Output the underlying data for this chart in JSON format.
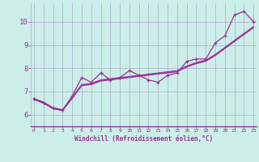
{
  "xlabel": "Windchill (Refroidissement éolien,°C)",
  "background_color": "#cceee8",
  "line_color": "#993399",
  "grid_color": "#aaaacc",
  "x_ticks": [
    0,
    1,
    2,
    3,
    4,
    5,
    6,
    7,
    8,
    9,
    10,
    11,
    12,
    13,
    14,
    15,
    16,
    17,
    18,
    19,
    20,
    21,
    22,
    23
  ],
  "y_ticks": [
    6,
    7,
    8,
    9,
    10
  ],
  "xlim": [
    -0.3,
    23.3
  ],
  "ylim": [
    5.5,
    10.8
  ],
  "marker_series": [
    6.7,
    6.5,
    6.3,
    6.2,
    6.8,
    7.6,
    7.4,
    7.8,
    7.5,
    7.6,
    7.9,
    7.7,
    7.5,
    7.4,
    7.7,
    7.8,
    8.3,
    8.4,
    8.4,
    9.1,
    9.4,
    10.3,
    10.45,
    10.0
  ],
  "smooth_lines": [
    [
      6.7,
      6.55,
      6.3,
      6.22,
      6.75,
      7.3,
      7.35,
      7.5,
      7.55,
      7.6,
      7.65,
      7.7,
      7.75,
      7.8,
      7.85,
      7.9,
      8.1,
      8.25,
      8.35,
      8.6,
      8.9,
      9.2,
      9.5,
      9.8
    ],
    [
      6.68,
      6.52,
      6.28,
      6.2,
      6.72,
      7.28,
      7.32,
      7.48,
      7.52,
      7.58,
      7.62,
      7.68,
      7.72,
      7.78,
      7.82,
      7.88,
      8.08,
      8.22,
      8.32,
      8.58,
      8.88,
      9.18,
      9.48,
      9.78
    ],
    [
      6.65,
      6.5,
      6.25,
      6.18,
      6.7,
      7.25,
      7.3,
      7.45,
      7.5,
      7.55,
      7.6,
      7.65,
      7.7,
      7.75,
      7.8,
      7.85,
      8.05,
      8.2,
      8.3,
      8.55,
      8.85,
      9.15,
      9.45,
      9.75
    ]
  ]
}
